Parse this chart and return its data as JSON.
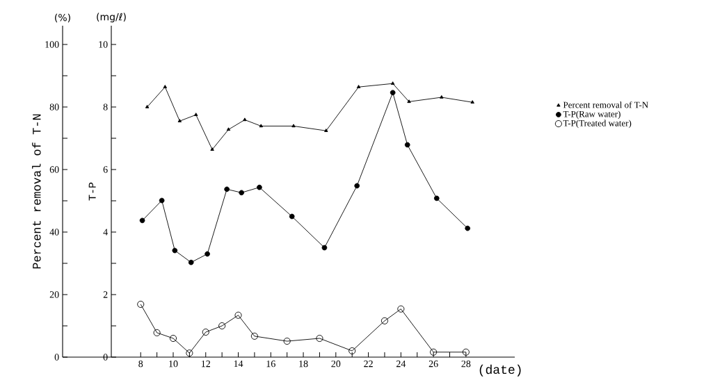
{
  "chart_data": {
    "type": "line",
    "xlabel": "(date)",
    "ylabel": "Percent removal of T-N",
    "y2label": "T-P",
    "annotations": [
      "(%)",
      "(mg/ℓ)"
    ],
    "xlim": [
      3.2,
      31
    ],
    "ylim": [
      0,
      106
    ],
    "y2lim": [
      0,
      10.6
    ],
    "xticks": [
      8,
      {
        "value": 9,
        "label": null
      },
      10,
      {
        "value": 11,
        "label": null
      },
      12,
      {
        "value": 13,
        "label": null
      },
      14,
      {
        "value": 15,
        "label": null
      },
      16,
      {
        "value": 17,
        "label": null
      },
      18,
      {
        "value": 19,
        "label": null
      },
      20,
      {
        "value": 21,
        "label": null
      },
      22,
      {
        "value": 23,
        "label": null
      },
      24,
      {
        "value": 25,
        "label": null
      },
      26,
      {
        "value": 27,
        "label": null
      },
      28
    ],
    "yticks": [
      0,
      {
        "value": 10,
        "label": null
      },
      20,
      {
        "value": 30,
        "label": null
      },
      40,
      {
        "value": 50,
        "label": null
      },
      60,
      {
        "value": 70,
        "label": null
      },
      80,
      {
        "value": 90,
        "label": null
      },
      100
    ],
    "y2ticks": [
      0,
      {
        "value": 1,
        "label": null
      },
      2,
      {
        "value": 3,
        "label": null
      },
      4,
      {
        "value": 5,
        "label": null
      },
      6,
      {
        "value": 7,
        "label": null
      },
      8,
      {
        "value": 9,
        "label": null
      },
      10
    ],
    "legend": "right",
    "line_style": "solid",
    "series": [
      {
        "name": "Percent removal of T-N",
        "color": "#000000",
        "marker": "triangle",
        "axis": "y",
        "x": [
          8.4,
          9.5,
          10.4,
          11.4,
          12.4,
          13.4,
          14.4,
          15.4,
          17.4,
          19.4,
          21.4,
          23.5,
          24.5,
          26.5,
          28.4
        ],
        "values": [
          80.0,
          86.4,
          75.5,
          77.5,
          66.4,
          72.8,
          75.9,
          73.9,
          73.9,
          72.4,
          86.4,
          87.5,
          81.7,
          83.1,
          81.5
        ]
      },
      {
        "name": "T-P(Raw water)",
        "color": "#000000",
        "marker": "circle",
        "axis": "y2",
        "x": [
          8.1,
          9.3,
          10.1,
          11.1,
          12.1,
          13.3,
          14.2,
          15.3,
          17.3,
          19.3,
          21.3,
          23.5,
          24.4,
          26.2,
          28.1
        ],
        "values": [
          4.37,
          5.01,
          3.41,
          3.03,
          3.3,
          5.37,
          5.26,
          5.43,
          4.5,
          3.5,
          5.48,
          8.46,
          6.79,
          5.08,
          4.12
        ]
      },
      {
        "name": "T-P(Treated water)",
        "color": "#000000",
        "marker": "open circle",
        "axis": "y2",
        "x": [
          8,
          9,
          10,
          11,
          12,
          13,
          14,
          15,
          17,
          19,
          21,
          23,
          24,
          26,
          28
        ],
        "values": [
          1.69,
          0.78,
          0.6,
          0.13,
          0.8,
          1.0,
          1.34,
          0.67,
          0.51,
          0.6,
          0.2,
          1.16,
          1.54,
          0.16,
          0.16
        ]
      }
    ]
  }
}
